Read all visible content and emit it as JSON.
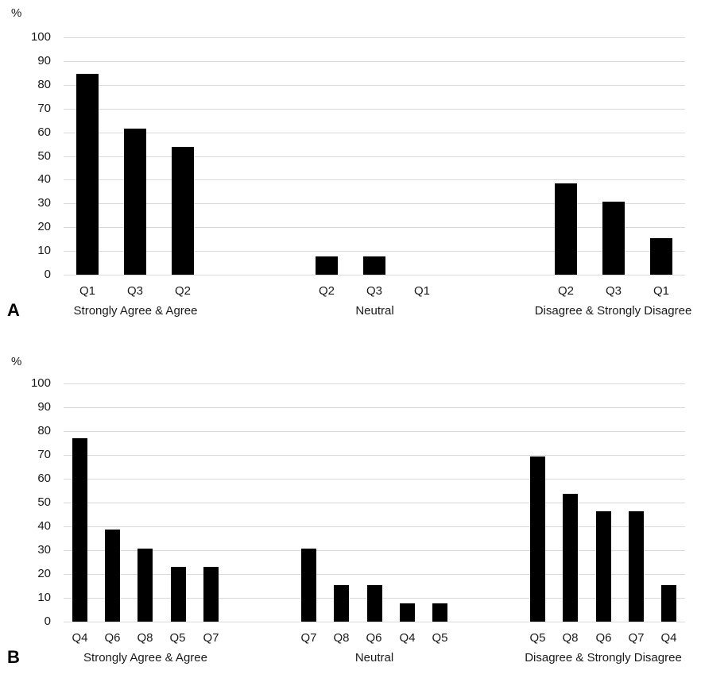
{
  "colors": {
    "background": "#ffffff",
    "bar": "#000000",
    "gridline": "#d9d9d9",
    "text": "#1a1a1a",
    "panel_letter": "#000000"
  },
  "chart_data": [
    {
      "type": "bar",
      "panel_label": "A",
      "unit_label": "%",
      "ylim": [
        0,
        100
      ],
      "ytick_step": 10,
      "yticks": [
        0,
        10,
        20,
        30,
        40,
        50,
        60,
        70,
        80,
        90,
        100
      ],
      "grid": "horizontal-major",
      "legend": "none",
      "groups": [
        {
          "label": "Strongly Agree & Agree",
          "categories": [
            "Q1",
            "Q3",
            "Q2"
          ],
          "values": [
            84.6,
            61.5,
            53.8
          ]
        },
        {
          "label": "Neutral",
          "categories": [
            "Q2",
            "Q3",
            "Q1"
          ],
          "values": [
            7.7,
            7.7,
            0
          ]
        },
        {
          "label": "Disagree & Strongly Disagree",
          "categories": [
            "Q2",
            "Q3",
            "Q1"
          ],
          "values": [
            38.5,
            30.8,
            15.4
          ]
        }
      ]
    },
    {
      "type": "bar",
      "panel_label": "B",
      "unit_label": "%",
      "ylim": [
        0,
        100
      ],
      "ytick_step": 10,
      "yticks": [
        0,
        10,
        20,
        30,
        40,
        50,
        60,
        70,
        80,
        90,
        100
      ],
      "grid": "horizontal-major",
      "legend": "none",
      "groups": [
        {
          "label": "Strongly Agree & Agree",
          "categories": [
            "Q4",
            "Q6",
            "Q8",
            "Q5",
            "Q7"
          ],
          "values": [
            76.9,
            38.5,
            30.8,
            23.1,
            23.1
          ]
        },
        {
          "label": "Neutral",
          "categories": [
            "Q7",
            "Q8",
            "Q6",
            "Q4",
            "Q5"
          ],
          "values": [
            30.8,
            15.4,
            15.4,
            7.7,
            7.7
          ]
        },
        {
          "label": "Disagree & Strongly Disagree",
          "categories": [
            "Q5",
            "Q8",
            "Q6",
            "Q7",
            "Q4"
          ],
          "values": [
            69.2,
            53.8,
            46.2,
            46.2,
            15.4
          ]
        }
      ]
    }
  ]
}
